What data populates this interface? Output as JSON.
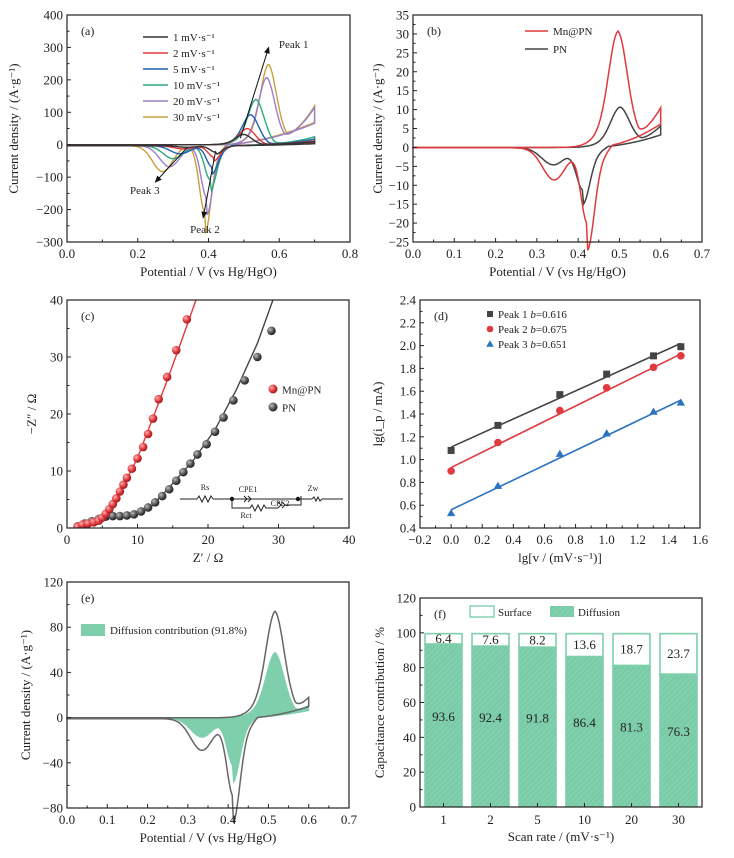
{
  "chart_data": [
    {
      "id": "a",
      "panel_label": "(a)",
      "type": "line",
      "xlabel": "Potential / V (vs Hg/HgO)",
      "ylabel": "Current density / (A·g⁻¹)",
      "xlim": [
        0.0,
        0.8
      ],
      "ylim": [
        -300,
        400
      ],
      "xticks": [
        "0.0",
        "0.2",
        "0.4",
        "0.6",
        "0.8"
      ],
      "yticks": [
        "400",
        "300",
        "200",
        "100",
        "0",
        "−100",
        "−200",
        "−300"
      ],
      "legend_position": "top-center",
      "series": [
        {
          "name": "1 mV·s⁻¹",
          "color": "#333333",
          "anodic_peak": [
            0.5,
            32
          ],
          "cathodic_peak1": [
            0.42,
            -20
          ],
          "cathodic_peak2": [
            0.34,
            -5
          ],
          "vmax_current": 10
        },
        {
          "name": "2 mV·s⁻¹",
          "color": "#e0393e",
          "anodic_peak": [
            0.51,
            50
          ],
          "cathodic_peak1": [
            0.415,
            -35
          ],
          "cathodic_peak2": [
            0.33,
            -10
          ],
          "vmax_current": 12
        },
        {
          "name": "5 mV·s⁻¹",
          "color": "#1f5fb4",
          "anodic_peak": [
            0.52,
            93
          ],
          "cathodic_peak1": [
            0.41,
            -65
          ],
          "cathodic_peak2": [
            0.32,
            -25
          ],
          "vmax_current": 18
        },
        {
          "name": "10 mV·s⁻¹",
          "color": "#2ea878",
          "anodic_peak": [
            0.535,
            140
          ],
          "cathodic_peak1": [
            0.405,
            -105
          ],
          "cathodic_peak2": [
            0.3,
            -40
          ],
          "vmax_current": 25
        },
        {
          "name": "20 mV·s⁻¹",
          "color": "#9b7fc6",
          "anodic_peak": [
            0.565,
            205
          ],
          "cathodic_peak1": [
            0.395,
            -160
          ],
          "cathodic_peak2": [
            0.29,
            -65
          ],
          "vmax_current": 115
        },
        {
          "name": "30 mV·s⁻¹",
          "color": "#c8a040",
          "anodic_peak": [
            0.57,
            245
          ],
          "cathodic_peak1": [
            0.39,
            -205
          ],
          "cathodic_peak2": [
            0.27,
            -80
          ],
          "vmax_current": 120
        }
      ],
      "annotations": [
        {
          "text": "Peak 1",
          "at": [
            0.565,
            310
          ]
        },
        {
          "text": "Peak 2",
          "at": [
            0.39,
            -260
          ]
        },
        {
          "text": "Peak 3",
          "at": [
            0.22,
            -140
          ]
        }
      ]
    },
    {
      "id": "b",
      "panel_label": "(b)",
      "type": "line",
      "xlabel": "Potential / V (vs Hg/HgO)",
      "ylabel": "Current density / (A·g⁻¹)",
      "xlim": [
        0.0,
        0.7
      ],
      "ylim": [
        -25,
        35
      ],
      "xticks": [
        "0.0",
        "0.1",
        "0.2",
        "0.3",
        "0.4",
        "0.5",
        "0.6",
        "0.7"
      ],
      "yticks": [
        "35",
        "30",
        "25",
        "20",
        "15",
        "10",
        "5",
        "0",
        "−5",
        "−10",
        "−15",
        "−20",
        "−25"
      ],
      "legend_position": "top-center",
      "series": [
        {
          "name": "Mn@PN",
          "color": "#e0393e",
          "anodic_peak": [
            0.497,
            30.3
          ],
          "cathodic_peak1": [
            0.423,
            -20
          ],
          "cathodic_peak2": [
            0.342,
            -8.5
          ],
          "vmax_current": 10.5
        },
        {
          "name": "PN",
          "color": "#444444",
          "anodic_peak": [
            0.502,
            10.4
          ],
          "cathodic_peak1": [
            0.412,
            -11
          ],
          "cathodic_peak2": [
            0.34,
            -4.5
          ],
          "vmax_current": 5.7
        }
      ]
    },
    {
      "id": "c",
      "panel_label": "(c)",
      "type": "scatter",
      "xlabel": "Z′ / Ω",
      "ylabel": "−Z″ / Ω",
      "xlim": [
        0,
        40
      ],
      "ylim": [
        0,
        40
      ],
      "xticks": [
        "0",
        "10",
        "20",
        "30",
        "40"
      ],
      "yticks": [
        "40",
        "30",
        "20",
        "10",
        "0"
      ],
      "legend_position": "right-middle",
      "series": [
        {
          "name": "Mn@PN",
          "color": "#e0393e",
          "x": [
            1.5,
            2.2,
            3.0,
            3.8,
            4.5,
            5.0,
            5.5,
            6.0,
            6.5,
            7.0,
            7.5,
            8.0,
            8.5,
            9.2,
            10.0,
            10.8,
            11.5,
            12.2,
            13.0,
            14.2,
            15.5,
            17.0
          ],
          "y": [
            0.2,
            0.6,
            0.8,
            1.0,
            1.3,
            1.8,
            2.5,
            3.3,
            4.2,
            5.2,
            6.4,
            7.6,
            8.8,
            10.4,
            12.2,
            14.2,
            16.5,
            19.2,
            22.6,
            26.5,
            31.2,
            36.6
          ]
        },
        {
          "name": "PN",
          "color": "#555555",
          "x": [
            1.5,
            2.5,
            3.5,
            4.5,
            5.5,
            6.5,
            7.5,
            8.5,
            9.5,
            10.5,
            11.5,
            12.5,
            13.5,
            14.5,
            15.5,
            16.5,
            17.5,
            18.5,
            19.8,
            21.0,
            22.2,
            23.6,
            25.2,
            27.0,
            29.0
          ],
          "y": [
            0.3,
            0.8,
            1.2,
            1.6,
            2.0,
            2.1,
            2.1,
            2.2,
            2.4,
            2.9,
            3.6,
            4.5,
            5.6,
            6.8,
            8.3,
            9.8,
            11.3,
            12.9,
            14.7,
            16.9,
            19.4,
            22.4,
            25.9,
            30.0,
            34.6
          ]
        }
      ],
      "circuit_labels": [
        "Rs",
        "CPE1",
        "CPE2",
        "Rct",
        "Zw"
      ]
    },
    {
      "id": "d",
      "panel_label": "(d)",
      "type": "scatter",
      "xlabel": "lg[v / (mV·s⁻¹)]",
      "ylabel": "lg(i_p / mA)",
      "xlim": [
        -0.2,
        1.6
      ],
      "ylim": [
        0.4,
        2.4
      ],
      "xticks": [
        "−0.2",
        "0.0",
        "0.2",
        "0.4",
        "0.6",
        "0.8",
        "1.0",
        "1.2",
        "1.4",
        "1.6"
      ],
      "yticks": [
        "2.4",
        "2.2",
        "2.0",
        "1.8",
        "1.6",
        "1.4",
        "1.2",
        "1.0",
        "0.8",
        "0.6",
        "0.4"
      ],
      "legend_position": "top-left",
      "x": [
        0.0,
        0.301,
        0.699,
        1.0,
        1.301,
        1.477
      ],
      "series": [
        {
          "name": "Peak 1",
          "b": "0.616",
          "marker": "square",
          "color": "#444444",
          "y": [
            1.08,
            1.3,
            1.57,
            1.75,
            1.91,
            1.99
          ],
          "fit": [
            1.11,
            0.616
          ]
        },
        {
          "name": "Peak 2",
          "b": "0.675",
          "marker": "circle",
          "color": "#e0393e",
          "y": [
            0.9,
            1.15,
            1.43,
            1.63,
            1.81,
            1.91
          ],
          "fit": [
            0.93,
            0.675
          ]
        },
        {
          "name": "Peak 3",
          "b": "0.651",
          "marker": "triangle",
          "color": "#2a73c0",
          "y": [
            0.53,
            0.77,
            1.05,
            1.23,
            1.42,
            1.5
          ],
          "fit": [
            0.56,
            0.651
          ]
        }
      ]
    },
    {
      "id": "e",
      "panel_label": "(e)",
      "type": "area",
      "xlabel": "Potential / V (vs Hg/HgO)",
      "ylabel": "Current density / (A·g⁻¹)",
      "xlim": [
        0.0,
        0.7
      ],
      "ylim": [
        -80,
        120
      ],
      "xticks": [
        "0.0",
        "0.1",
        "0.2",
        "0.3",
        "0.4",
        "0.5",
        "0.6",
        "0.7"
      ],
      "yticks": [
        "120",
        "80",
        "40",
        "0",
        "−40",
        "−80"
      ],
      "legend_position": "top-left",
      "legend": "Diffusion contribution (91.8%)",
      "fill_color": "#7fcfac",
      "line_color": "#666666",
      "total_cv": {
        "anodic_peak": [
          0.517,
          93
        ],
        "cathodic_peak1": [
          0.413,
          -68
        ],
        "cathodic_peak2": [
          0.335,
          -28
        ],
        "vmax_current": 18
      },
      "diffusion_cv": {
        "anodic_peak": [
          0.517,
          57
        ],
        "cathodic_peak1": [
          0.413,
          -42
        ],
        "cathodic_peak2": [
          0.335,
          -17
        ],
        "vmax_current": 11
      }
    },
    {
      "id": "f",
      "panel_label": "(f)",
      "type": "bar",
      "xlabel": "Scan rate / (mV·s⁻¹)",
      "ylabel": "Capacitance contribution / %",
      "ylim": [
        0,
        120
      ],
      "yticks": [
        "120",
        "100",
        "80",
        "60",
        "40",
        "20",
        "0"
      ],
      "categories": [
        "1",
        "2",
        "5",
        "10",
        "20",
        "30"
      ],
      "legend_position": "top",
      "series": [
        {
          "name": "Diffusion",
          "color": "#7fcfac",
          "values": [
            93.6,
            92.4,
            91.8,
            86.4,
            81.3,
            76.3
          ],
          "labels": [
            "93.6",
            "92.4",
            "91.8",
            "86.4",
            "81.3",
            "76.3"
          ]
        },
        {
          "name": "Surface",
          "color": "#ffffff",
          "values": [
            6.4,
            7.6,
            8.2,
            13.6,
            18.7,
            23.7
          ],
          "labels": [
            "6.4",
            "7.6",
            "8.2",
            "13.6",
            "18.7",
            "23.7"
          ]
        }
      ]
    }
  ]
}
